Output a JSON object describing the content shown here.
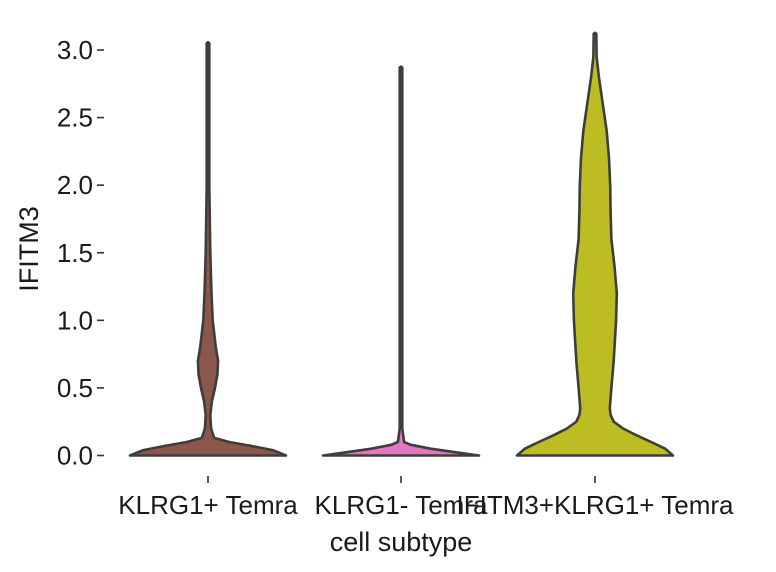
{
  "chart_data": {
    "type": "violin",
    "title": "",
    "xlabel": "cell subtype",
    "ylabel": "IFITM3",
    "ylim": [
      -0.2,
      3.15
    ],
    "yticks": [
      0.0,
      0.5,
      1.0,
      1.5,
      2.0,
      2.5,
      3.0
    ],
    "ytick_labels": [
      "0.0",
      "0.5",
      "1.0",
      "1.5",
      "2.0",
      "2.5",
      "3.0"
    ],
    "grid": false,
    "categories": [
      "KLRG1+ Temra",
      "KLRG1- Temra",
      "IFITM3+KLRG1+ Temra"
    ],
    "series": [
      {
        "category": "KLRG1+ Temra",
        "color": "#8c564b",
        "max": 3.05,
        "profile": [
          [
            0,
            1.0
          ],
          [
            0.04,
            0.83
          ],
          [
            0.07,
            0.56
          ],
          [
            0.1,
            0.27
          ],
          [
            0.13,
            0.08
          ],
          [
            0.2,
            0.04
          ],
          [
            0.3,
            0.03
          ],
          [
            0.4,
            0.05
          ],
          [
            0.5,
            0.09
          ],
          [
            0.6,
            0.12
          ],
          [
            0.7,
            0.13
          ],
          [
            0.8,
            0.1
          ],
          [
            1.0,
            0.06
          ],
          [
            1.2,
            0.045
          ],
          [
            1.5,
            0.03
          ],
          [
            2.0,
            0.012
          ],
          [
            2.5,
            0.006
          ],
          [
            3.05,
            0
          ]
        ]
      },
      {
        "category": "KLRG1- Temra",
        "color": "#e377c2",
        "max": 2.87,
        "profile": [
          [
            0,
            1.0
          ],
          [
            0.02,
            0.75
          ],
          [
            0.05,
            0.38
          ],
          [
            0.08,
            0.12
          ],
          [
            0.1,
            0.04
          ],
          [
            0.2,
            0.012
          ],
          [
            0.4,
            0.008
          ],
          [
            0.6,
            0.007
          ],
          [
            1.0,
            0.005
          ],
          [
            2.0,
            0.004
          ],
          [
            2.87,
            0
          ]
        ]
      },
      {
        "category": "IFITM3+KLRG1+ Temra",
        "color": "#bcbd22",
        "max": 3.12,
        "profile": [
          [
            0,
            1.0
          ],
          [
            0.05,
            0.9
          ],
          [
            0.1,
            0.72
          ],
          [
            0.15,
            0.53
          ],
          [
            0.2,
            0.36
          ],
          [
            0.25,
            0.24
          ],
          [
            0.3,
            0.2
          ],
          [
            0.35,
            0.19
          ],
          [
            0.5,
            0.21
          ],
          [
            0.7,
            0.24
          ],
          [
            1.0,
            0.27
          ],
          [
            1.2,
            0.28
          ],
          [
            1.4,
            0.25
          ],
          [
            1.6,
            0.21
          ],
          [
            1.8,
            0.2
          ],
          [
            2.0,
            0.195
          ],
          [
            2.2,
            0.18
          ],
          [
            2.4,
            0.15
          ],
          [
            2.6,
            0.1
          ],
          [
            2.8,
            0.05
          ],
          [
            2.95,
            0.02
          ],
          [
            3.12,
            0
          ]
        ]
      }
    ]
  }
}
